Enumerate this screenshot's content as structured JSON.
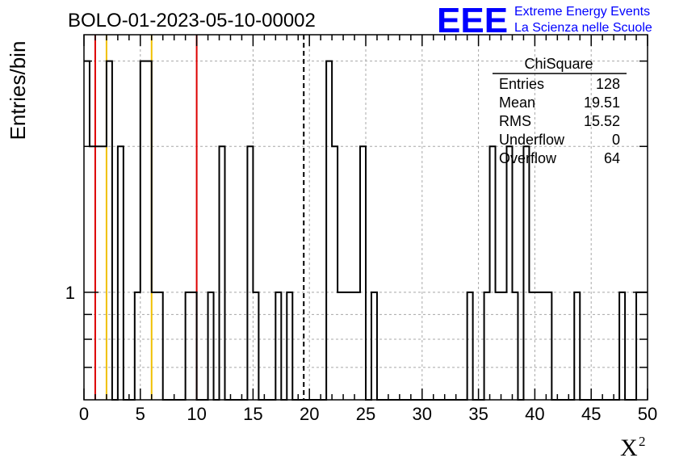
{
  "header": {
    "title": "BOLO-01-2023-05-10-00002",
    "logo_text": "EEE",
    "logo_line1": "Extreme Energy Events",
    "logo_line2": "La Scienza nelle Scuole",
    "logo_color": "#0000ff"
  },
  "stats_box": {
    "title": "ChiSquare",
    "rows": [
      {
        "label": "Entries",
        "value": "128"
      },
      {
        "label": "Mean",
        "value": "19.51"
      },
      {
        "label": "RMS",
        "value": "15.52"
      },
      {
        "label": "Underflow",
        "value": "0"
      },
      {
        "label": "Overflow",
        "value": "64"
      }
    ]
  },
  "chart_data": {
    "type": "histogram",
    "title": "BOLO-01-2023-05-10-00002",
    "xlabel": "X",
    "xlabel_superscript": "2",
    "ylabel": "Entries/bin",
    "xlim": [
      0,
      50
    ],
    "ylim": [
      0.6,
      3.4
    ],
    "yscale": "log",
    "y_tick_labels": [
      "1"
    ],
    "x_tick_labels": [
      "0",
      "5",
      "10",
      "15",
      "20",
      "25",
      "30",
      "35",
      "40",
      "45",
      "50"
    ],
    "grid": true,
    "bin_width": 0.5,
    "bins": [
      {
        "x": 0.0,
        "y": 3
      },
      {
        "x": 0.5,
        "y": 2
      },
      {
        "x": 1.0,
        "y": 2
      },
      {
        "x": 1.5,
        "y": 2
      },
      {
        "x": 2.0,
        "y": 3
      },
      {
        "x": 2.5,
        "y": 0
      },
      {
        "x": 3.0,
        "y": 2
      },
      {
        "x": 3.5,
        "y": 0
      },
      {
        "x": 4.0,
        "y": 0
      },
      {
        "x": 4.5,
        "y": 1
      },
      {
        "x": 5.0,
        "y": 3
      },
      {
        "x": 5.5,
        "y": 3
      },
      {
        "x": 6.0,
        "y": 1
      },
      {
        "x": 6.5,
        "y": 1
      },
      {
        "x": 7.0,
        "y": 0
      },
      {
        "x": 7.5,
        "y": 0
      },
      {
        "x": 8.0,
        "y": 0
      },
      {
        "x": 8.5,
        "y": 0
      },
      {
        "x": 9.0,
        "y": 1
      },
      {
        "x": 9.5,
        "y": 1
      },
      {
        "x": 10.0,
        "y": 0
      },
      {
        "x": 10.5,
        "y": 0
      },
      {
        "x": 11.0,
        "y": 1
      },
      {
        "x": 11.5,
        "y": 0
      },
      {
        "x": 12.0,
        "y": 2
      },
      {
        "x": 12.5,
        "y": 0
      },
      {
        "x": 13.0,
        "y": 0
      },
      {
        "x": 13.5,
        "y": 0
      },
      {
        "x": 14.0,
        "y": 0
      },
      {
        "x": 14.5,
        "y": 2
      },
      {
        "x": 15.0,
        "y": 1
      },
      {
        "x": 15.5,
        "y": 0
      },
      {
        "x": 16.0,
        "y": 0
      },
      {
        "x": 16.5,
        "y": 0
      },
      {
        "x": 17.0,
        "y": 1
      },
      {
        "x": 17.5,
        "y": 0
      },
      {
        "x": 18.0,
        "y": 1
      },
      {
        "x": 18.5,
        "y": 0
      },
      {
        "x": 19.0,
        "y": 0
      },
      {
        "x": 19.5,
        "y": 0
      },
      {
        "x": 20.0,
        "y": 0
      },
      {
        "x": 20.5,
        "y": 0
      },
      {
        "x": 21.0,
        "y": 0
      },
      {
        "x": 21.5,
        "y": 3
      },
      {
        "x": 22.0,
        "y": 2
      },
      {
        "x": 22.5,
        "y": 1
      },
      {
        "x": 23.0,
        "y": 1
      },
      {
        "x": 23.5,
        "y": 1
      },
      {
        "x": 24.0,
        "y": 1
      },
      {
        "x": 24.5,
        "y": 2
      },
      {
        "x": 25.0,
        "y": 0
      },
      {
        "x": 25.5,
        "y": 1
      },
      {
        "x": 26.0,
        "y": 0
      },
      {
        "x": 26.5,
        "y": 0
      },
      {
        "x": 27.0,
        "y": 0
      },
      {
        "x": 27.5,
        "y": 0
      },
      {
        "x": 28.0,
        "y": 0
      },
      {
        "x": 28.5,
        "y": 0
      },
      {
        "x": 29.0,
        "y": 0
      },
      {
        "x": 29.5,
        "y": 0
      },
      {
        "x": 30.0,
        "y": 0
      },
      {
        "x": 30.5,
        "y": 0
      },
      {
        "x": 31.0,
        "y": 0
      },
      {
        "x": 31.5,
        "y": 0
      },
      {
        "x": 32.0,
        "y": 0
      },
      {
        "x": 32.5,
        "y": 0
      },
      {
        "x": 33.0,
        "y": 0
      },
      {
        "x": 33.5,
        "y": 0
      },
      {
        "x": 34.0,
        "y": 1
      },
      {
        "x": 34.5,
        "y": 0
      },
      {
        "x": 35.0,
        "y": 0
      },
      {
        "x": 35.5,
        "y": 1
      },
      {
        "x": 36.0,
        "y": 2
      },
      {
        "x": 36.5,
        "y": 1
      },
      {
        "x": 37.0,
        "y": 1
      },
      {
        "x": 37.5,
        "y": 2
      },
      {
        "x": 38.0,
        "y": 1
      },
      {
        "x": 38.5,
        "y": 0
      },
      {
        "x": 39.0,
        "y": 2
      },
      {
        "x": 39.5,
        "y": 1
      },
      {
        "x": 40.0,
        "y": 1
      },
      {
        "x": 40.5,
        "y": 1
      },
      {
        "x": 41.0,
        "y": 1
      },
      {
        "x": 41.5,
        "y": 0
      },
      {
        "x": 42.0,
        "y": 0
      },
      {
        "x": 42.5,
        "y": 0
      },
      {
        "x": 43.0,
        "y": 0
      },
      {
        "x": 43.5,
        "y": 1
      },
      {
        "x": 44.0,
        "y": 0
      },
      {
        "x": 44.5,
        "y": 0
      },
      {
        "x": 45.0,
        "y": 0
      },
      {
        "x": 45.5,
        "y": 0
      },
      {
        "x": 46.0,
        "y": 0
      },
      {
        "x": 46.5,
        "y": 0
      },
      {
        "x": 47.0,
        "y": 0
      },
      {
        "x": 47.5,
        "y": 1
      },
      {
        "x": 48.0,
        "y": 0
      },
      {
        "x": 48.5,
        "y": 0
      },
      {
        "x": 49.0,
        "y": 1
      },
      {
        "x": 49.5,
        "y": 1
      }
    ],
    "vertical_lines": [
      {
        "x": 1,
        "color": "#dd0000",
        "style": "solid"
      },
      {
        "x": 2,
        "color": "#f0c000",
        "style": "solid"
      },
      {
        "x": 6,
        "color": "#f0c000",
        "style": "solid"
      },
      {
        "x": 10,
        "color": "#dd0000",
        "style": "solid"
      },
      {
        "x": 19.5,
        "color": "#000000",
        "style": "dashed"
      }
    ]
  }
}
